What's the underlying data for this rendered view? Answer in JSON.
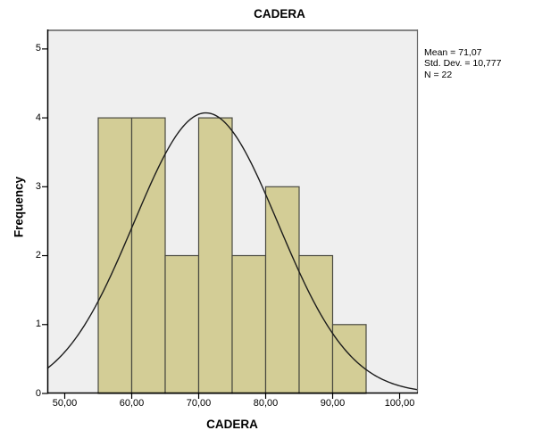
{
  "chart_title": "CADERA",
  "stats_box": {
    "lines": [
      "Mean = 71,07",
      "Std. Dev. = 10,777",
      "N = 22"
    ]
  },
  "chart_data": {
    "type": "histogram",
    "title": "CADERA",
    "xlabel": "CADERA",
    "ylabel": "Frequency",
    "bin_width": 5,
    "bin_edges": [
      55,
      60,
      65,
      70,
      75,
      80,
      85,
      90,
      95
    ],
    "frequencies": [
      4,
      4,
      2,
      4,
      2,
      3,
      2,
      1
    ],
    "x_tick_values": [
      50,
      60,
      70,
      80,
      90,
      100
    ],
    "x_tick_labels": [
      "50,00",
      "60,00",
      "70,00",
      "80,00",
      "90,00",
      "100,00"
    ],
    "y_tick_values": [
      0,
      1,
      2,
      3,
      4,
      5
    ],
    "y_tick_labels": [
      "0",
      "1",
      "2",
      "3",
      "4",
      "5"
    ],
    "xlim": [
      47.4,
      102.73
    ],
    "ylim": [
      0,
      5.283
    ],
    "grid": false,
    "legend_position": "none",
    "normal_curve": {
      "mean": 71.07,
      "std_dev": 10.777,
      "n": 22,
      "bin_width": 5
    },
    "colors": {
      "bar_fill": "#d3cd96",
      "bar_border": "#4a4a40",
      "curve": "#1c1c1c",
      "plot_bg": "#efefef",
      "frame_top": "#848484",
      "frame_right": "#666666",
      "axis": "#000000"
    }
  }
}
